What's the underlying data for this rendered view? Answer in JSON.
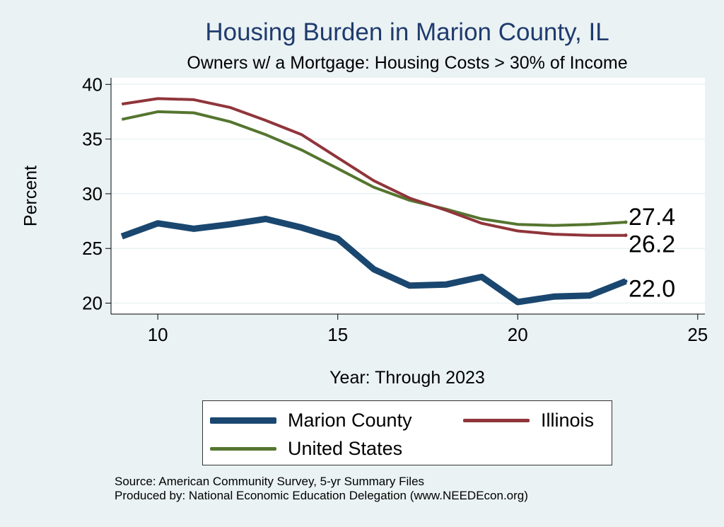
{
  "chart_data": {
    "type": "line",
    "title": "Housing Burden in Marion County, IL",
    "subtitle": "Owners w/ a Mortgage: Housing Costs > 30% of Income",
    "xlabel": "Year: Through 2023",
    "ylabel": "Percent",
    "xlim": [
      8.7,
      25.2
    ],
    "ylim": [
      19.0,
      40.6
    ],
    "xticks": [
      10,
      15,
      20,
      25
    ],
    "yticks": [
      20,
      25,
      30,
      35,
      40
    ],
    "grid": true,
    "legend_position": "bottom",
    "x": [
      9,
      10,
      11,
      12,
      13,
      14,
      15,
      16,
      17,
      18,
      19,
      20,
      21,
      22,
      23
    ],
    "series": [
      {
        "name": "Marion County",
        "color": "#1a476f",
        "width": 9,
        "values": [
          26.1,
          27.3,
          26.8,
          27.2,
          27.7,
          26.9,
          25.9,
          23.1,
          21.6,
          21.7,
          22.4,
          20.1,
          20.6,
          20.7,
          22.0
        ],
        "end_label": "22.0"
      },
      {
        "name": "Illinois",
        "color": "#90353b",
        "width": 4,
        "values": [
          38.2,
          38.7,
          38.6,
          37.9,
          36.7,
          35.4,
          33.3,
          31.2,
          29.6,
          28.5,
          27.3,
          26.6,
          26.3,
          26.2,
          26.2
        ],
        "end_label": "26.2"
      },
      {
        "name": "United States",
        "color": "#55752f",
        "width": 4,
        "values": [
          36.8,
          37.5,
          37.4,
          36.6,
          35.4,
          34.0,
          32.3,
          30.6,
          29.4,
          28.6,
          27.7,
          27.2,
          27.1,
          27.2,
          27.4
        ],
        "end_label": "27.4"
      }
    ]
  },
  "notes": {
    "source": "Source: American Community Survey, 5-yr Summary Files",
    "produced": "Produced by: National Economic Education Delegation (www.NEEDEcon.org)"
  }
}
